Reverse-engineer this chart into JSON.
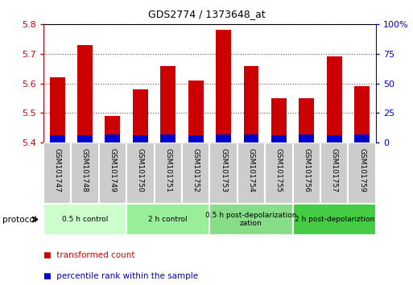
{
  "title": "GDS2774 / 1373648_at",
  "samples": [
    "GSM101747",
    "GSM101748",
    "GSM101749",
    "GSM101750",
    "GSM101751",
    "GSM101752",
    "GSM101753",
    "GSM101754",
    "GSM101755",
    "GSM101756",
    "GSM101757",
    "GSM101759"
  ],
  "red_values": [
    5.62,
    5.73,
    5.49,
    5.58,
    5.66,
    5.61,
    5.78,
    5.66,
    5.55,
    5.55,
    5.69,
    5.59
  ],
  "blue_values": [
    5.425,
    5.425,
    5.428,
    5.424,
    5.426,
    5.424,
    5.428,
    5.426,
    5.424,
    5.426,
    5.424,
    5.426
  ],
  "ymin": 5.4,
  "ymax": 5.8,
  "y_ticks": [
    5.4,
    5.5,
    5.6,
    5.7,
    5.8
  ],
  "right_yticks": [
    0,
    25,
    50,
    75,
    100
  ],
  "right_yticklabels": [
    "0",
    "25",
    "50",
    "75",
    "100%"
  ],
  "red_color": "#cc0000",
  "blue_color": "#0000cc",
  "grid_color": "#555555",
  "protocol_groups": [
    {
      "label": "0.5 h control",
      "start": 0,
      "end": 3,
      "color": "#ccffcc"
    },
    {
      "label": "2 h control",
      "start": 3,
      "end": 6,
      "color": "#99ee99"
    },
    {
      "label": "0.5 h post-depolarization\nzation",
      "start": 6,
      "end": 9,
      "color": "#88dd88"
    },
    {
      "label": "2 h post-depolariztion",
      "start": 9,
      "end": 12,
      "color": "#44cc44"
    }
  ],
  "legend_red_label": "transformed count",
  "legend_blue_label": "percentile rank within the sample",
  "title_color": "#000000",
  "bar_width": 0.55,
  "label_box_color": "#cccccc",
  "spine_color": "#000000"
}
